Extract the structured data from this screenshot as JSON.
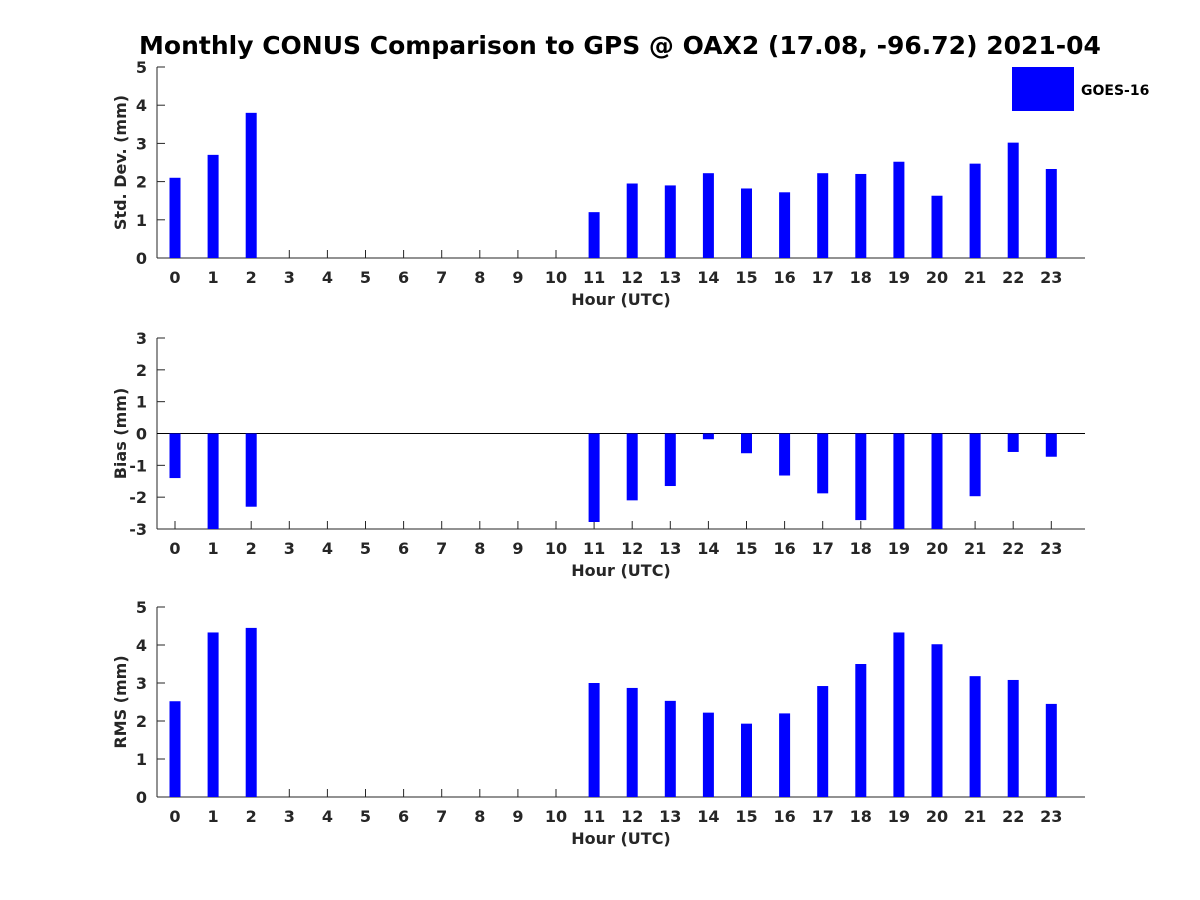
{
  "title": "Monthly CONUS Comparison to GPS @ OAX2 (17.08, -96.72) 2021-04",
  "legend": {
    "label": "GOES-16",
    "color": "#0000ff",
    "placement": "top-right"
  },
  "chart_data": [
    {
      "type": "bar",
      "categories": [
        "0",
        "1",
        "2",
        "3",
        "4",
        "5",
        "6",
        "7",
        "8",
        "9",
        "10",
        "11",
        "12",
        "13",
        "14",
        "15",
        "16",
        "17",
        "18",
        "19",
        "20",
        "21",
        "22",
        "23"
      ],
      "series": [
        {
          "name": "GOES-16",
          "values": [
            2.1,
            2.7,
            3.8,
            null,
            null,
            null,
            null,
            null,
            null,
            null,
            null,
            1.2,
            1.95,
            1.9,
            2.22,
            1.82,
            1.72,
            2.22,
            2.2,
            2.52,
            1.63,
            2.47,
            3.02,
            2.33
          ]
        }
      ],
      "xlabel": "Hour (UTC)",
      "ylabel": "Std. Dev. (mm)",
      "ylim": [
        0,
        5
      ],
      "yticks": [
        0,
        1,
        2,
        3,
        4,
        5
      ],
      "grid": false
    },
    {
      "type": "bar",
      "categories": [
        "0",
        "1",
        "2",
        "3",
        "4",
        "5",
        "6",
        "7",
        "8",
        "9",
        "10",
        "11",
        "12",
        "13",
        "14",
        "15",
        "16",
        "17",
        "18",
        "19",
        "20",
        "21",
        "22",
        "23"
      ],
      "series": [
        {
          "name": "GOES-16",
          "values": [
            -1.4,
            -3.0,
            -2.3,
            null,
            null,
            null,
            null,
            null,
            null,
            null,
            null,
            -2.78,
            -2.1,
            -1.65,
            -0.18,
            -0.62,
            -1.32,
            -1.88,
            -2.72,
            -3.0,
            -3.0,
            -1.97,
            -0.58,
            -0.73
          ]
        }
      ],
      "xlabel": "Hour (UTC)",
      "ylabel": "Bias (mm)",
      "ylim": [
        -3,
        3
      ],
      "yticks": [
        -3,
        -2,
        -1,
        0,
        1,
        2,
        3
      ],
      "zero_line": true,
      "grid": false
    },
    {
      "type": "bar",
      "categories": [
        "0",
        "1",
        "2",
        "3",
        "4",
        "5",
        "6",
        "7",
        "8",
        "9",
        "10",
        "11",
        "12",
        "13",
        "14",
        "15",
        "16",
        "17",
        "18",
        "19",
        "20",
        "21",
        "22",
        "23"
      ],
      "series": [
        {
          "name": "GOES-16",
          "values": [
            2.52,
            4.33,
            4.45,
            null,
            null,
            null,
            null,
            null,
            null,
            null,
            null,
            3.0,
            2.87,
            2.53,
            2.22,
            1.93,
            2.2,
            2.92,
            3.5,
            4.33,
            4.02,
            3.18,
            3.08,
            2.45
          ]
        }
      ],
      "xlabel": "Hour (UTC)",
      "ylabel": "RMS (mm)",
      "ylim": [
        0,
        5
      ],
      "yticks": [
        0,
        1,
        2,
        3,
        4,
        5
      ],
      "grid": false
    }
  ]
}
